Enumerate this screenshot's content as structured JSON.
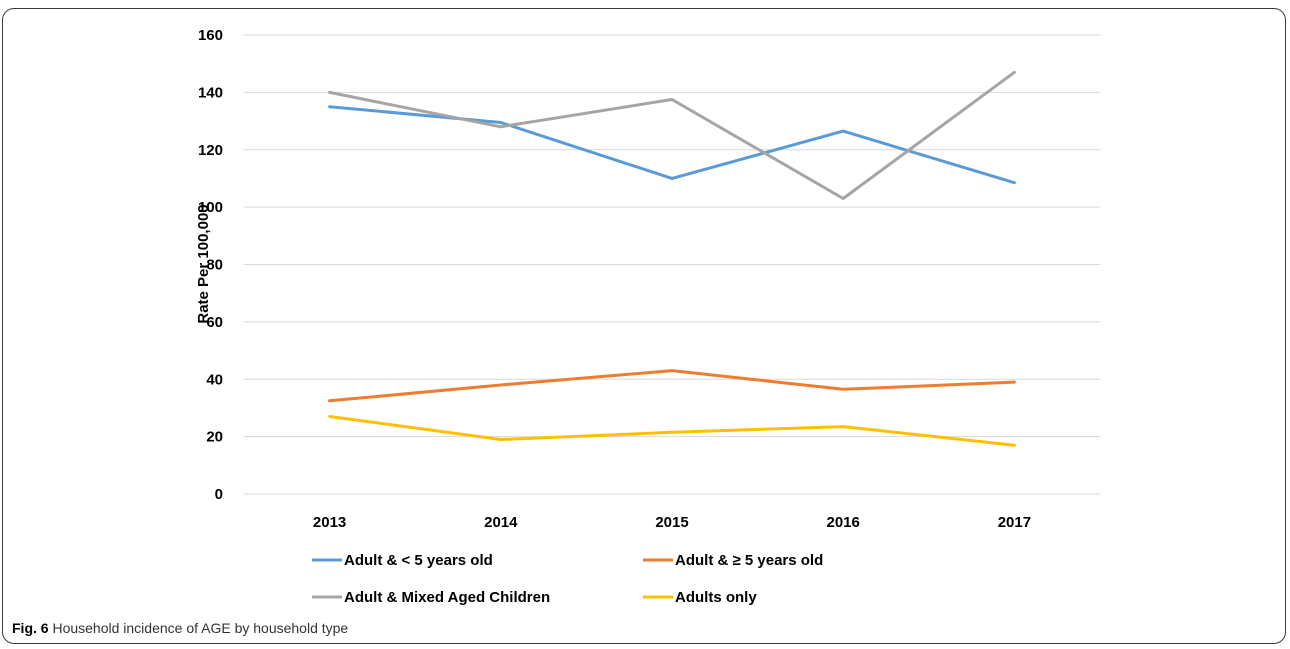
{
  "caption": {
    "label": "Fig. 6",
    "text": "Household incidence of AGE by household type"
  },
  "chart_data": {
    "type": "line",
    "ylabel": "Rate Per 100,000",
    "xlabel": "",
    "ylim": [
      0,
      160
    ],
    "yticks": [
      0,
      20,
      40,
      60,
      80,
      100,
      120,
      140,
      160
    ],
    "categories": [
      "2013",
      "2014",
      "2015",
      "2016",
      "2017"
    ],
    "grid": "horizontal",
    "legend_position": "bottom",
    "series": [
      {
        "name": "Adult & < 5 years old",
        "color": "#5B9BD5",
        "values": [
          135.0,
          129.5,
          110.0,
          126.5,
          108.5
        ]
      },
      {
        "name": "Adult & ≥ 5 years old",
        "color": "#ED7D31",
        "values": [
          32.5,
          38.0,
          43.0,
          36.5,
          39.0
        ]
      },
      {
        "name": "Adult & Mixed Aged Children",
        "color": "#A5A5A5",
        "values": [
          140.0,
          128.0,
          137.5,
          103.0,
          147.0
        ]
      },
      {
        "name": "Adults only",
        "color": "#FFC000",
        "values": [
          27.0,
          19.0,
          21.5,
          23.5,
          17.0
        ]
      }
    ]
  }
}
